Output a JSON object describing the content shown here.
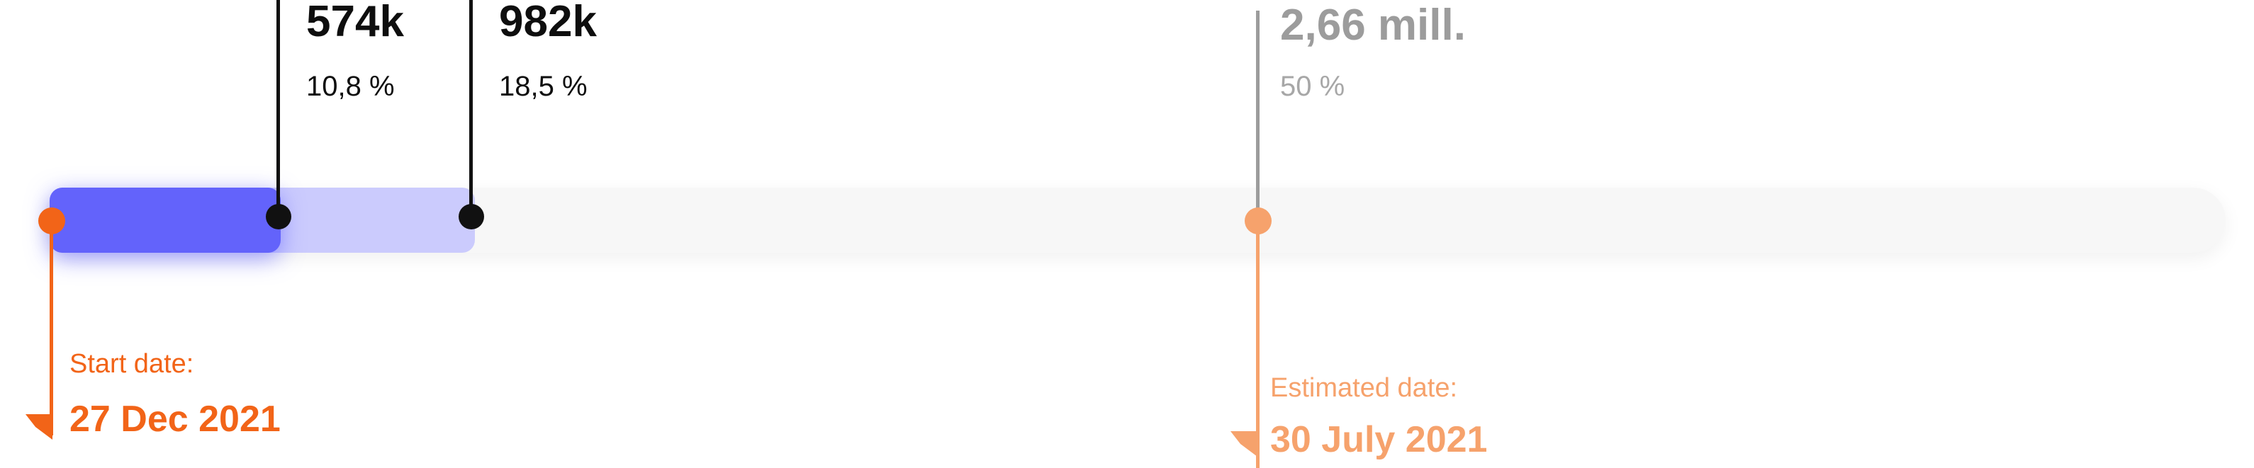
{
  "chart_data": {
    "type": "progress-timeline",
    "markers": [
      {
        "value_label": "574k",
        "percent_label": "10,8 %",
        "percent": 10.8,
        "style": "achieved"
      },
      {
        "value_label": "982k",
        "percent_label": "18,5 %",
        "percent": 18.5,
        "style": "achieved"
      },
      {
        "value_label": "2,66 mill.",
        "percent_label": "50 %",
        "percent": 50,
        "style": "target"
      }
    ],
    "start": {
      "label": "Start date:",
      "date": "27 Dec 2021"
    },
    "estimate": {
      "label": "Estimated date:",
      "date": "30 July 2021"
    }
  },
  "colors": {
    "primary_fill": "#6363fb",
    "secondary_fill": "#cbcbfd",
    "track": "#f7f7f7",
    "start": "#f26418",
    "estimate": "#f6a26c",
    "marker": "#111111",
    "target_marker": "#9c9c9c"
  }
}
